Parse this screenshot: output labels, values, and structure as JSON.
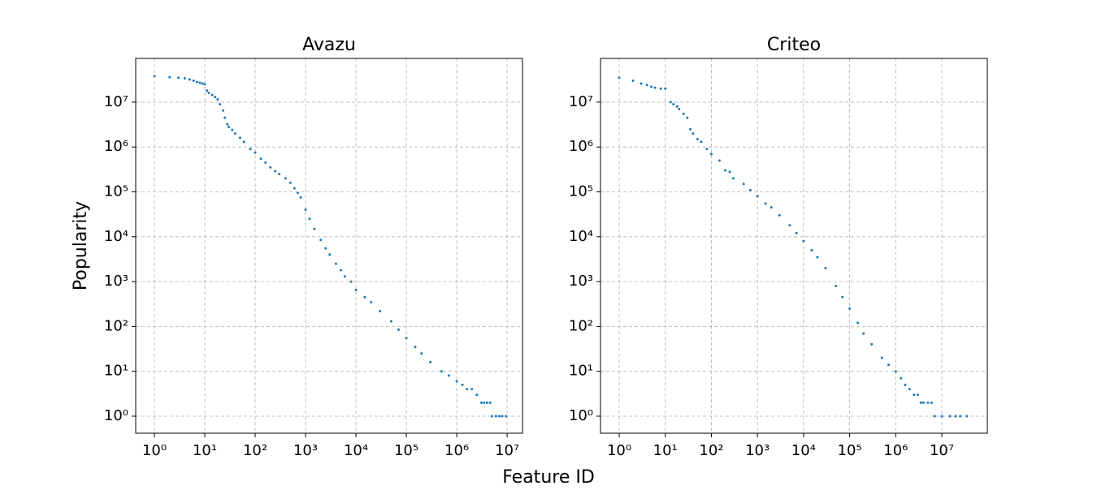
{
  "figure": {
    "xlabel": "Feature ID",
    "ylabel": "Popularity"
  },
  "chart_data": [
    {
      "type": "scatter",
      "title": "Avazu",
      "xscale": "log",
      "yscale": "log",
      "grid": true,
      "color": "#1f77b4",
      "x": [
        1,
        2,
        3,
        4,
        5,
        6,
        7,
        8,
        9,
        10,
        11,
        12,
        14,
        16,
        18,
        20,
        23,
        25,
        28,
        30,
        35,
        40,
        50,
        60,
        80,
        100,
        130,
        160,
        200,
        250,
        300,
        400,
        500,
        600,
        700,
        800,
        1000,
        1200,
        1500,
        2000,
        2500,
        3000,
        4000,
        5000,
        6000,
        8000,
        10000,
        15000,
        20000,
        30000,
        50000,
        70000,
        100000,
        150000,
        200000,
        300000,
        500000,
        700000,
        1000000,
        1300000,
        1600000,
        2000000,
        2500000,
        3100000,
        3500000,
        4000000,
        4600000,
        5000000,
        6000000,
        7000000,
        8000000,
        9500000
      ],
      "values": [
        38000000,
        36000000,
        35000000,
        34000000,
        32000000,
        30000000,
        28000000,
        27000000,
        26000000,
        25000000,
        18000000,
        16000000,
        14500000,
        13000000,
        11500000,
        9000000,
        6500000,
        4500000,
        3200000,
        2800000,
        2400000,
        2000000,
        1600000,
        1300000,
        900000,
        750000,
        550000,
        450000,
        350000,
        290000,
        250000,
        200000,
        160000,
        120000,
        95000,
        75000,
        40000,
        25000,
        15000,
        8500,
        5500,
        4000,
        2500,
        1800,
        1300,
        1000,
        650,
        450,
        350,
        220,
        130,
        85,
        55,
        35,
        25,
        16,
        10,
        8,
        6,
        5,
        4,
        4,
        3,
        2,
        2,
        2,
        2,
        1,
        1,
        1,
        1,
        1
      ],
      "xlim": [
        0.425,
        20200000
      ],
      "ylim": [
        0.417,
        94400000
      ],
      "xticks": [
        {
          "value": 1,
          "label": "10⁰"
        },
        {
          "value": 10,
          "label": "10¹"
        },
        {
          "value": 100,
          "label": "10²"
        },
        {
          "value": 1000,
          "label": "10³"
        },
        {
          "value": 10000,
          "label": "10⁴"
        },
        {
          "value": 100000,
          "label": "10⁵"
        },
        {
          "value": 1000000,
          "label": "10⁶"
        },
        {
          "value": 10000000,
          "label": "10⁷"
        }
      ],
      "yticks": [
        {
          "value": 1,
          "label": "10⁰"
        },
        {
          "value": 10,
          "label": "10¹"
        },
        {
          "value": 100,
          "label": "10²"
        },
        {
          "value": 1000,
          "label": "10³"
        },
        {
          "value": 10000,
          "label": "10⁴"
        },
        {
          "value": 100000,
          "label": "10⁵"
        },
        {
          "value": 1000000,
          "label": "10⁶"
        },
        {
          "value": 10000000,
          "label": "10⁷"
        }
      ]
    },
    {
      "type": "scatter",
      "title": "Criteo",
      "xscale": "log",
      "yscale": "log",
      "grid": true,
      "color": "#1f77b4",
      "x": [
        1,
        2,
        3,
        4,
        5,
        6,
        8,
        10,
        13,
        15,
        18,
        20,
        25,
        30,
        35,
        40,
        50,
        60,
        80,
        100,
        150,
        200,
        250,
        300,
        500,
        700,
        1000,
        1500,
        2000,
        3000,
        5000,
        7000,
        10000,
        15000,
        20000,
        30000,
        50000,
        70000,
        100000,
        150000,
        200000,
        300000,
        500000,
        700000,
        1000000,
        1300000,
        1600000,
        2000000,
        2500000,
        3000000,
        3500000,
        4000000,
        5000000,
        6000000,
        7000000,
        10000000,
        15000000,
        20000000,
        25000000,
        35000000
      ],
      "values": [
        35000000,
        30000000,
        26000000,
        24000000,
        22000000,
        21000000,
        20000000,
        20000000,
        10000000,
        9000000,
        8000000,
        7000000,
        5500000,
        4500000,
        2500000,
        2000000,
        1500000,
        1300000,
        900000,
        700000,
        500000,
        300000,
        280000,
        200000,
        150000,
        110000,
        80000,
        55000,
        45000,
        30000,
        18000,
        12000,
        8000,
        5000,
        3500,
        2000,
        800,
        450,
        250,
        120,
        70,
        40,
        20,
        14,
        10,
        7,
        5,
        4,
        3,
        3,
        2,
        2,
        2,
        2,
        1,
        1,
        1,
        1,
        1,
        1
      ],
      "xlim": [
        0.393,
        97000000
      ],
      "ylim": [
        0.417,
        94400000
      ],
      "xticks": [
        {
          "value": 1,
          "label": "10⁰"
        },
        {
          "value": 10,
          "label": "10¹"
        },
        {
          "value": 100,
          "label": "10²"
        },
        {
          "value": 1000,
          "label": "10³"
        },
        {
          "value": 10000,
          "label": "10⁴"
        },
        {
          "value": 100000,
          "label": "10⁵"
        },
        {
          "value": 1000000,
          "label": "10⁶"
        },
        {
          "value": 10000000,
          "label": "10⁷"
        }
      ],
      "yticks": [
        {
          "value": 1,
          "label": "10⁰"
        },
        {
          "value": 10,
          "label": "10¹"
        },
        {
          "value": 100,
          "label": "10²"
        },
        {
          "value": 1000,
          "label": "10³"
        },
        {
          "value": 10000,
          "label": "10⁴"
        },
        {
          "value": 100000,
          "label": "10⁵"
        },
        {
          "value": 1000000,
          "label": "10⁶"
        },
        {
          "value": 10000000,
          "label": "10⁷"
        }
      ]
    }
  ]
}
